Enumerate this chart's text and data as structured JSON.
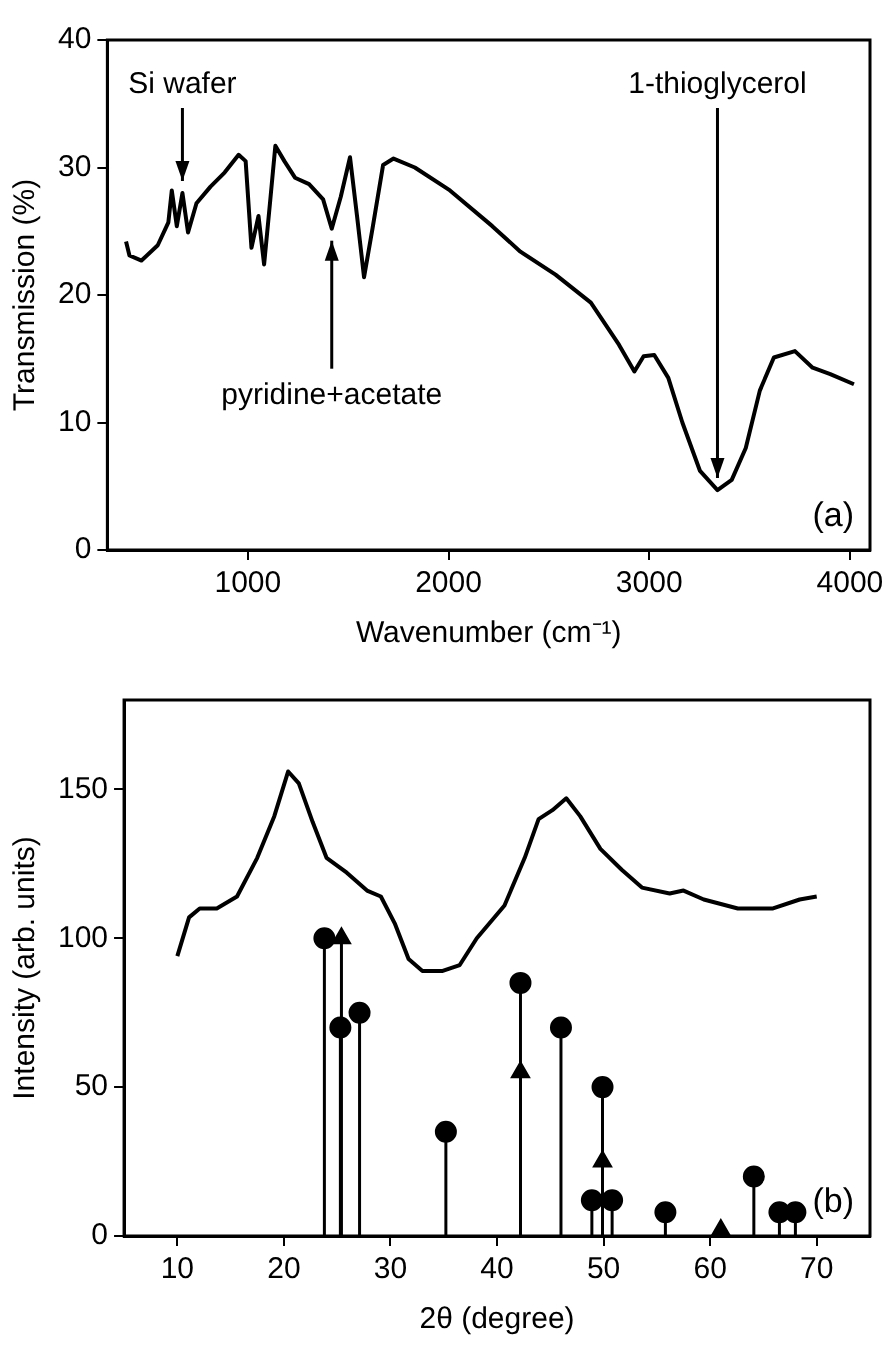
{
  "chart_data": [
    {
      "type": "line",
      "xlabel": "Wavenumber (cm⁻¹)",
      "ylabel": "Transmission (%)",
      "xlim": [
        300,
        4100
      ],
      "xticks": [
        1000,
        2000,
        3000,
        4000
      ],
      "ylim": [
        0,
        40
      ],
      "yticks": [
        0,
        10,
        20,
        30,
        40
      ],
      "grid": false,
      "legend": false,
      "series": [
        {
          "color": "#000000",
          "x": [
            393,
            410,
            470,
            551,
            604,
            621,
            646,
            674,
            702,
            744,
            814,
            884,
            954,
            989,
            1018,
            1053,
            1081,
            1112,
            1137,
            1182,
            1235,
            1305,
            1375,
            1418,
            1463,
            1509,
            1544,
            1579,
            1621,
            1674,
            1726,
            1832,
            2007,
            2218,
            2358,
            2533,
            2709,
            2849,
            2926,
            2972,
            3025,
            3095,
            3165,
            3253,
            3340,
            3411,
            3481,
            3551,
            3621,
            3726,
            3814,
            3902,
            4020
          ],
          "values": [
            24.2,
            23.1,
            22.7,
            23.9,
            25.7,
            28.2,
            25.4,
            28.0,
            24.9,
            27.2,
            28.5,
            29.6,
            31.0,
            30.5,
            23.7,
            26.2,
            22.4,
            27.5,
            31.7,
            30.5,
            29.2,
            28.7,
            27.5,
            25.2,
            27.7,
            30.8,
            26.2,
            21.4,
            25.2,
            30.2,
            30.7,
            30.0,
            28.2,
            25.4,
            23.4,
            21.6,
            19.4,
            16.1,
            14.0,
            15.2,
            15.3,
            13.5,
            10.0,
            6.2,
            4.7,
            5.5,
            8.0,
            12.5,
            15.1,
            15.6,
            14.3,
            13.8,
            13.0
          ]
        }
      ],
      "annotations": [
        {
          "text": "Si wafer",
          "x": 674,
          "y": 28.0
        },
        {
          "text": "pyridine+acetate",
          "x": 1418,
          "y": 25.2
        },
        {
          "text": "1-thioglycerol",
          "x": 3340,
          "y": 4.7
        },
        "(a)"
      ]
    },
    {
      "type": "line",
      "xlabel": "2θ (degree)",
      "ylabel": "Intensity (arb. units)",
      "xlim": [
        5,
        75
      ],
      "xticks": [
        10,
        20,
        30,
        40,
        50,
        60,
        70
      ],
      "ylim": [
        0,
        180
      ],
      "yticks": [
        0,
        50,
        100,
        150
      ],
      "grid": false,
      "legend": false,
      "series": [
        {
          "color": "#000000",
          "x": [
            10,
            11.1,
            12.1,
            13.7,
            15.6,
            17.5,
            19.1,
            20.4,
            21.4,
            22.7,
            24.0,
            25.9,
            27.8,
            29.1,
            30.4,
            31.7,
            33.0,
            34.9,
            36.5,
            38.1,
            40.7,
            42.6,
            43.9,
            45.2,
            46.5,
            47.8,
            49.7,
            51.7,
            53.6,
            56.2,
            57.5,
            59.4,
            62.6,
            65.9,
            68.4,
            70
          ],
          "values": [
            94,
            107,
            110,
            110,
            114,
            127,
            141,
            156,
            152,
            139,
            127,
            122,
            116,
            114,
            105,
            93,
            89,
            89,
            91,
            100,
            111,
            127,
            140,
            143,
            147,
            141,
            130,
            123,
            117,
            115,
            116,
            113,
            110,
            110,
            113,
            114
          ]
        },
        {
          "type": "lollipop",
          "color": "#000000",
          "marker": "circle",
          "x": [
            23.8,
            25.3,
            27.1,
            35.2,
            42.2,
            46.0,
            48.9,
            49.9,
            50.8,
            55.8,
            64.1,
            66.5,
            68.0
          ],
          "values": [
            100,
            70,
            75,
            35,
            85,
            70,
            12,
            50,
            12,
            8,
            20,
            8,
            8
          ]
        },
        {
          "type": "lollipop",
          "color": "#000000",
          "marker": "triangle",
          "x": [
            25.4,
            42.2,
            49.9,
            61.0
          ],
          "values": [
            100,
            55,
            25,
            2
          ]
        }
      ],
      "annotations": [
        "(b)"
      ]
    }
  ]
}
